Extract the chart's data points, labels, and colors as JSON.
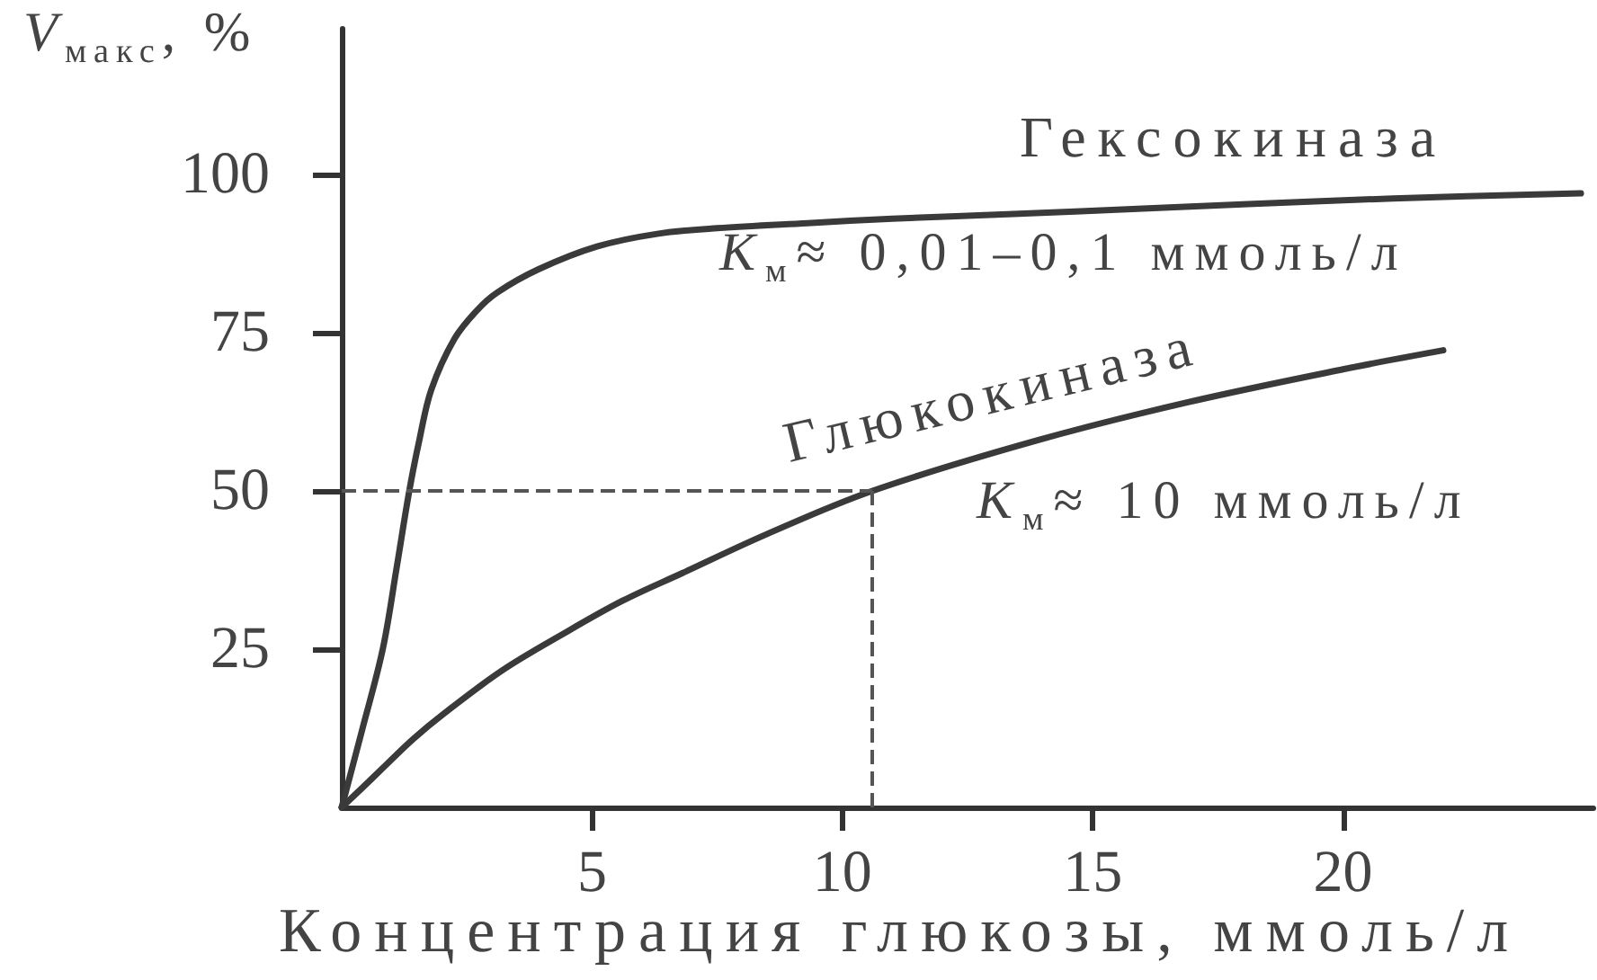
{
  "chart_data": {
    "type": "line",
    "xlabel": "Концентрация глюкозы, ммоль/л",
    "ylabel": "V$_{макс}$, %",
    "xlim": [
      0,
      25
    ],
    "ylim": [
      0,
      123
    ],
    "xticks": [
      5,
      10,
      15,
      20
    ],
    "yticks": [
      25,
      50,
      75,
      100
    ],
    "grid": false,
    "legend": false,
    "marker": "none",
    "line_style": "solid",
    "series": [
      {
        "name": "Гексокиназа",
        "color": "#3a3a3a",
        "x": [
          0,
          0.4,
          0.82,
          1.1,
          1.35,
          1.55,
          1.79,
          2.25,
          2.7,
          3.1,
          3.93,
          5.1,
          6.3,
          7.5,
          9.3,
          11,
          13.3,
          16,
          18.1,
          21,
          24.75
        ],
        "values": [
          0,
          12,
          25,
          38,
          50,
          58,
          66,
          74,
          78.5,
          81.3,
          85,
          88.6,
          90.6,
          91.5,
          92.3,
          93,
          93.7,
          94.6,
          95.3,
          96.2,
          97
        ]
      },
      {
        "name": "Глюкокиназа",
        "color": "#3a3a3a",
        "x": [
          0,
          0.4,
          0.82,
          1.43,
          2.04,
          3.2,
          4.4,
          5.6,
          6.8,
          8.5,
          10.6,
          13.9,
          16.9,
          20,
          22
        ],
        "values": [
          0,
          3,
          6.2,
          10.8,
          14.8,
          21.6,
          27.3,
          32.6,
          37,
          43.2,
          50,
          58,
          64,
          69.2,
          72.2
        ]
      }
    ],
    "ref_lines": [
      {
        "axis": "y",
        "value": 50,
        "line_style": "dashed",
        "color": "#555555"
      },
      {
        "axis": "x",
        "value": 10.6,
        "line_style": "dashed",
        "color": "#555555"
      }
    ],
    "annotations": [
      "K$_{м}$≈ 0,01–0,1 ммоль/л",
      "K$_{м}$≈ 10 ммоль/л"
    ]
  }
}
